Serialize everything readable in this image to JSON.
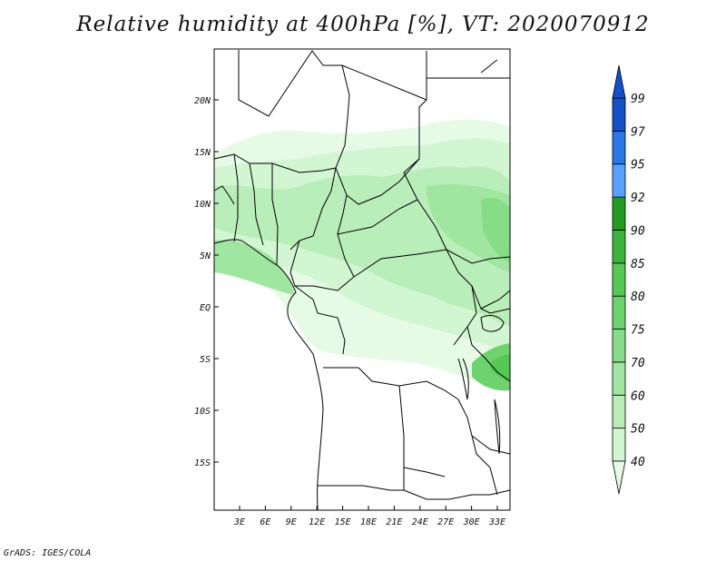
{
  "title": "Relative humidity at 400hPa [%], VT: 2020070912",
  "credit": "GrADS: IGES/COLA",
  "map": {
    "lon_range": [
      0,
      35
    ],
    "lat_range": [
      -20,
      25
    ],
    "lat_ticks": [
      "20N",
      "15N",
      "10N",
      "5N",
      "EQ",
      "5S",
      "10S",
      "15S"
    ],
    "lon_ticks": [
      "3E",
      "6E",
      "9E",
      "12E",
      "15E",
      "18E",
      "21E",
      "24E",
      "27E",
      "30E",
      "33E"
    ]
  },
  "colorbar": {
    "labels": [
      "40",
      "50",
      "60",
      "70",
      "75",
      "80",
      "85",
      "90",
      "92",
      "95",
      "97",
      "99"
    ],
    "colors": [
      "#e6fae6",
      "#d2f5d2",
      "#b9edb9",
      "#a0e6a0",
      "#87dd87",
      "#6ed36e",
      "#55c855",
      "#3cb43c",
      "#239b23",
      "#5aa0ff",
      "#2a78e6",
      "#1450c8"
    ]
  }
}
